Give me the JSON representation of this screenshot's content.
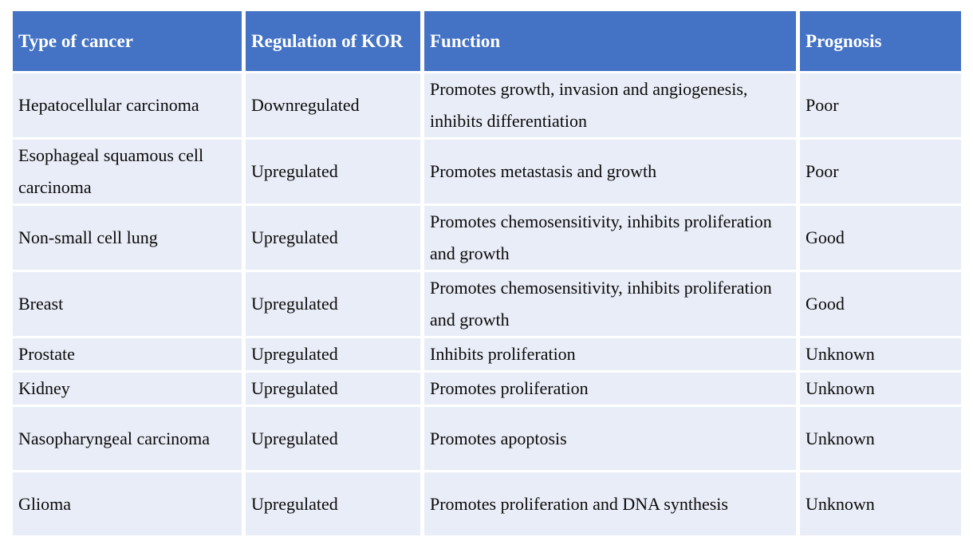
{
  "colors": {
    "header_background": "#4472C4",
    "header_text": "#FFFFFF",
    "row_background": "#E9EDF7",
    "body_text": "#0A0A0A",
    "cell_gap": "#FFFFFF"
  },
  "table": {
    "columns": [
      {
        "label": "Type of cancer"
      },
      {
        "label": "Regulation of KOR"
      },
      {
        "label": "Function"
      },
      {
        "label": "Prognosis"
      }
    ],
    "rows": [
      {
        "type": "Hepatocellular carcinoma",
        "regulation": "Downregulated",
        "function": "Promotes growth, invasion and angiogenesis, inhibits differentiation",
        "prognosis": "Poor"
      },
      {
        "type": "Esophageal squamous cell carcinoma",
        "regulation": "Upregulated",
        "function": "Promotes metastasis and growth",
        "prognosis": "Poor"
      },
      {
        "type": "Non-small cell lung",
        "regulation": "Upregulated",
        "function": "Promotes chemosensitivity, inhibits proliferation and growth",
        "prognosis": "Good"
      },
      {
        "type": "Breast",
        "regulation": "Upregulated",
        "function": "Promotes chemosensitivity, inhibits proliferation and growth",
        "prognosis": "Good"
      },
      {
        "type": "Prostate",
        "regulation": "Upregulated",
        "function": "Inhibits proliferation",
        "prognosis": "Unknown"
      },
      {
        "type": "Kidney",
        "regulation": "Upregulated",
        "function": "Promotes proliferation",
        "prognosis": "Unknown"
      },
      {
        "type": "Nasopharyngeal carcinoma",
        "regulation": "Upregulated",
        "function": "Promotes apoptosis",
        "prognosis": "Unknown"
      },
      {
        "type": "Glioma",
        "regulation": "Upregulated",
        "function": "Promotes proliferation and DNA synthesis",
        "prognosis": "Unknown"
      }
    ]
  }
}
